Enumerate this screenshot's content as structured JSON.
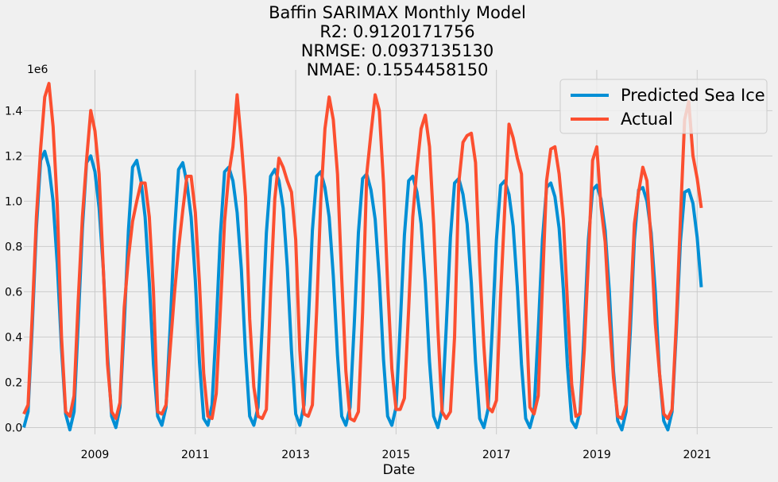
{
  "chart_data": {
    "type": "line",
    "title": [
      "Baffin SARIMAX Monthly Model",
      "R2: 0.9120171756",
      "NRMSE: 0.0937135130",
      "NMAE: 0.1554458150"
    ],
    "xlabel": "Date",
    "ylabel": "",
    "y_offset_label": "1e6",
    "x_range": [
      "2007-08",
      "2022-07"
    ],
    "ylim": [
      -0.03,
      1.58
    ],
    "x_ticks": [
      2009,
      2011,
      2013,
      2015,
      2017,
      2019,
      2021
    ],
    "y_ticks": [
      0.0,
      0.2,
      0.4,
      0.6,
      0.8,
      1.0,
      1.2,
      1.4
    ],
    "grid": true,
    "legend_position": "top-right",
    "colors": {
      "predicted": "#008fd5",
      "actual": "#fc4f30"
    },
    "series": [
      {
        "name": "Predicted Sea Ice",
        "start": "2007-08",
        "values": [
          0.0,
          0.07,
          0.44,
          0.88,
          1.18,
          1.22,
          1.15,
          1.0,
          0.72,
          0.35,
          0.06,
          -0.01,
          0.07,
          0.46,
          0.88,
          1.17,
          1.2,
          1.13,
          0.97,
          0.7,
          0.32,
          0.05,
          0.0,
          0.09,
          0.45,
          0.87,
          1.15,
          1.18,
          1.09,
          0.93,
          0.64,
          0.28,
          0.05,
          0.01,
          0.09,
          0.45,
          0.86,
          1.14,
          1.17,
          1.08,
          0.93,
          0.65,
          0.29,
          0.04,
          0.01,
          0.1,
          0.45,
          0.85,
          1.13,
          1.15,
          1.09,
          0.95,
          0.7,
          0.33,
          0.05,
          0.01,
          0.09,
          0.45,
          0.86,
          1.11,
          1.14,
          1.09,
          0.97,
          0.71,
          0.34,
          0.06,
          0.01,
          0.1,
          0.46,
          0.87,
          1.11,
          1.13,
          1.06,
          0.93,
          0.67,
          0.32,
          0.05,
          0.01,
          0.09,
          0.45,
          0.86,
          1.1,
          1.12,
          1.05,
          0.92,
          0.66,
          0.3,
          0.05,
          0.01,
          0.09,
          0.45,
          0.85,
          1.09,
          1.11,
          1.04,
          0.9,
          0.64,
          0.29,
          0.05,
          0.0,
          0.08,
          0.44,
          0.84,
          1.08,
          1.1,
          1.03,
          0.9,
          0.64,
          0.29,
          0.04,
          0.0,
          0.08,
          0.43,
          0.83,
          1.07,
          1.09,
          1.03,
          0.89,
          0.62,
          0.28,
          0.04,
          0.0,
          0.07,
          0.43,
          0.83,
          1.06,
          1.08,
          1.02,
          0.88,
          0.61,
          0.27,
          0.03,
          0.0,
          0.07,
          0.43,
          0.83,
          1.05,
          1.07,
          1.01,
          0.87,
          0.6,
          0.25,
          0.03,
          -0.01,
          0.07,
          0.42,
          0.83,
          1.05,
          1.06,
          1.0,
          0.86,
          0.6,
          0.24,
          0.03,
          -0.01,
          0.07,
          0.42,
          0.82,
          1.04,
          1.05,
          0.99,
          0.84,
          0.62
        ]
      },
      {
        "name": "Actual",
        "start": "2007-08",
        "values": [
          0.06,
          0.1,
          0.49,
          0.93,
          1.23,
          1.46,
          1.52,
          1.33,
          0.98,
          0.4,
          0.07,
          0.05,
          0.14,
          0.56,
          0.93,
          1.18,
          1.4,
          1.31,
          1.12,
          0.7,
          0.28,
          0.07,
          0.04,
          0.11,
          0.53,
          0.75,
          0.91,
          1.0,
          1.08,
          1.08,
          0.93,
          0.6,
          0.07,
          0.06,
          0.1,
          0.35,
          0.59,
          0.79,
          0.96,
          1.11,
          1.11,
          0.95,
          0.64,
          0.24,
          0.05,
          0.04,
          0.15,
          0.52,
          0.91,
          1.12,
          1.24,
          1.47,
          1.26,
          1.02,
          0.48,
          0.18,
          0.05,
          0.04,
          0.08,
          0.6,
          1.01,
          1.19,
          1.15,
          1.09,
          1.04,
          0.83,
          0.34,
          0.06,
          0.05,
          0.1,
          0.51,
          1.0,
          1.32,
          1.46,
          1.36,
          1.12,
          0.66,
          0.25,
          0.04,
          0.03,
          0.07,
          0.51,
          1.12,
          1.3,
          1.47,
          1.4,
          1.08,
          0.63,
          0.26,
          0.08,
          0.08,
          0.13,
          0.52,
          0.93,
          1.15,
          1.32,
          1.38,
          1.24,
          0.9,
          0.44,
          0.07,
          0.04,
          0.07,
          0.4,
          1.08,
          1.26,
          1.29,
          1.3,
          1.17,
          0.72,
          0.36,
          0.09,
          0.07,
          0.12,
          0.58,
          0.97,
          1.34,
          1.28,
          1.19,
          1.12,
          0.55,
          0.09,
          0.06,
          0.14,
          0.63,
          1.09,
          1.23,
          1.24,
          1.12,
          0.92,
          0.55,
          0.19,
          0.05,
          0.06,
          0.34,
          0.74,
          1.18,
          1.24,
          0.98,
          0.82,
          0.49,
          0.22,
          0.05,
          0.04,
          0.1,
          0.51,
          0.9,
          1.04,
          1.15,
          1.09,
          0.82,
          0.46,
          0.24,
          0.06,
          0.04,
          0.08,
          0.46,
          0.92,
          1.36,
          1.44,
          1.2,
          1.1,
          0.97
        ]
      }
    ]
  }
}
